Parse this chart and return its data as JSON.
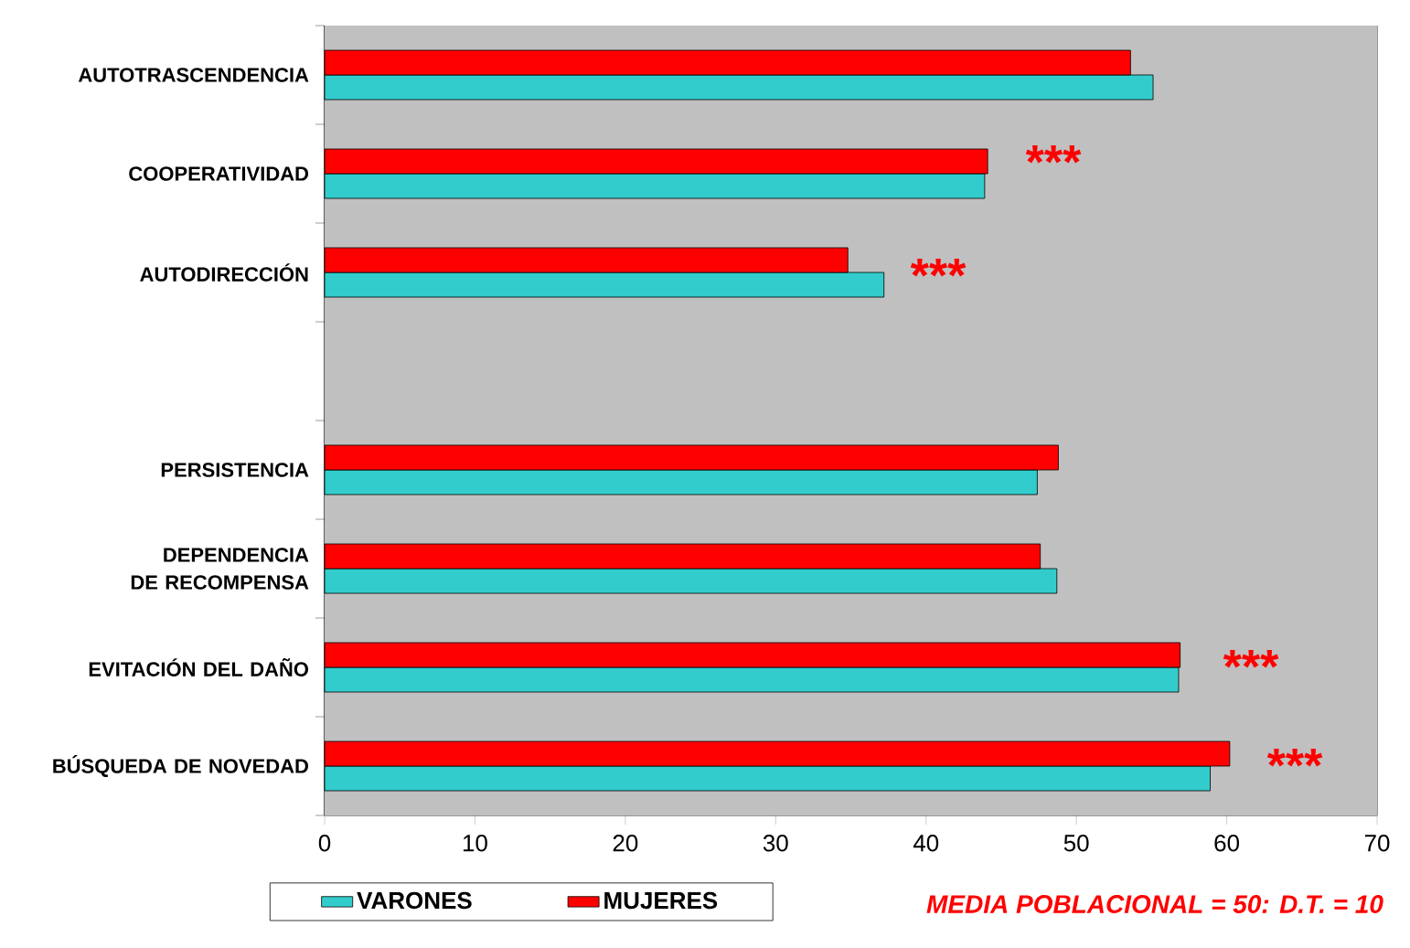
{
  "chart_data": {
    "type": "bar",
    "orientation": "horizontal",
    "categories": [
      "AUTOTRASCENDENCIA",
      "COOPERATIVIDAD",
      "AUTODIRECCIÓN",
      null,
      "PERSISTENCIA",
      "DEPENDENCIA DE RECOMPENSA",
      "EVITACIÓN DEL DAÑO",
      "BÚSQUEDA DE NOVEDAD"
    ],
    "series": [
      {
        "name": "VARONES",
        "color": "#33cccc",
        "values": [
          55.1,
          43.9,
          37.2,
          null,
          47.4,
          48.7,
          56.8,
          58.9
        ]
      },
      {
        "name": "MUJERES",
        "color": "#ff0000",
        "values": [
          53.6,
          44.1,
          34.8,
          null,
          48.8,
          47.6,
          56.9,
          60.2
        ]
      }
    ],
    "xlim": [
      0,
      70
    ],
    "xticks": [
      0,
      10,
      20,
      30,
      40,
      50,
      60,
      70
    ],
    "grid": "x",
    "legend": "bottom",
    "annotations": [
      "***",
      "***",
      "***",
      "***",
      "MEDIA POBLACIONAL = 50: D.T. = 10"
    ]
  }
}
